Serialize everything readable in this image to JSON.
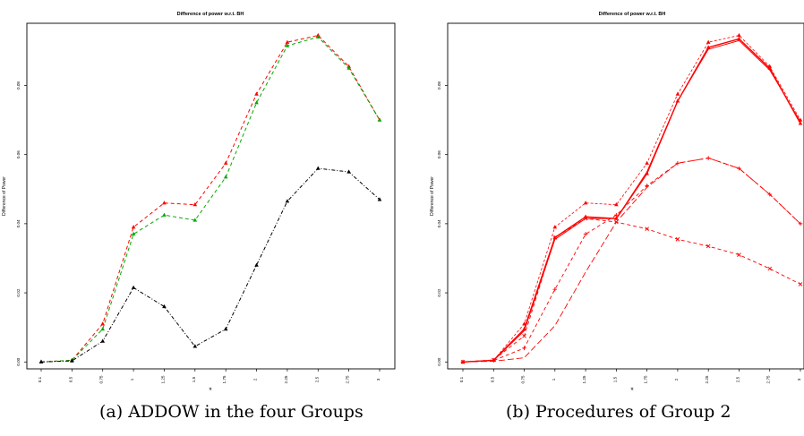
{
  "chart_data": [
    {
      "type": "line",
      "title": "Difference of power w.r.t. BH",
      "xlabel": "π",
      "ylabel": "Difference of Power",
      "caption": "(a) ADDOW in the four Groups",
      "x_tick_labels": [
        "0.1",
        "0.5",
        "0.75",
        "1",
        "1.25",
        "1.5",
        "1.75",
        "2",
        "2.25",
        "2.5",
        "2.75",
        "3"
      ],
      "y_ticks": [
        "0.00",
        "0.02",
        "0.04",
        "0.06",
        "0.08"
      ],
      "ylim": [
        -0.002,
        0.098
      ],
      "series": [
        {
          "color": "#ff0000",
          "marker": "triangle",
          "dash": "4,3",
          "values": [
            0.0,
            0.0005,
            0.011,
            0.039,
            0.046,
            0.0455,
            0.0575,
            0.0775,
            0.0925,
            0.0945,
            0.0855,
            0.07
          ]
        },
        {
          "color": "#00aa00",
          "marker": "triangle",
          "dash": "4,3",
          "values": [
            0.0,
            0.0005,
            0.0095,
            0.037,
            0.0425,
            0.041,
            0.0535,
            0.075,
            0.0915,
            0.094,
            0.085,
            0.07
          ]
        },
        {
          "color": "#000000",
          "marker": "triangle",
          "dash": "4,2,1,2",
          "values": [
            0.0,
            0.0003,
            0.006,
            0.0215,
            0.016,
            0.0045,
            0.0095,
            0.028,
            0.0465,
            0.056,
            0.055,
            0.047
          ]
        }
      ]
    },
    {
      "type": "line",
      "title": "Difference of power w.r.t. BH",
      "xlabel": "π",
      "ylabel": "Difference of Power",
      "caption": "(b) Procedures of Group 2",
      "x_tick_labels": [
        "0.1",
        "0.5",
        "0.75",
        "1",
        "1.25",
        "1.5",
        "1.75",
        "2",
        "2.25",
        "2.5",
        "2.75",
        "3"
      ],
      "y_ticks": [
        "0.00",
        "0.02",
        "0.04",
        "0.06",
        "0.08"
      ],
      "ylim": [
        -0.002,
        0.098
      ],
      "series": [
        {
          "color": "#ff0000",
          "marker": "triangle",
          "dash": "3,2",
          "width": 0.8,
          "values": [
            0.0,
            0.0005,
            0.011,
            0.039,
            0.046,
            0.0455,
            0.0575,
            0.0775,
            0.0925,
            0.0945,
            0.0855,
            0.07
          ]
        },
        {
          "color": "#ff0000",
          "marker": "triangle",
          "dash": "",
          "width": 1.4,
          "values": [
            0.0,
            0.0005,
            0.0095,
            0.036,
            0.042,
            0.0415,
            0.0545,
            0.0755,
            0.091,
            0.0935,
            0.085,
            0.069
          ]
        },
        {
          "color": "#ff0000",
          "marker": "none",
          "dash": "",
          "width": 1.0,
          "values": [
            0.0,
            0.0004,
            0.009,
            0.0355,
            0.0415,
            0.0415,
            0.055,
            0.0755,
            0.0905,
            0.093,
            0.0845,
            0.0695
          ]
        },
        {
          "color": "#ff0000",
          "marker": "plus",
          "dash": "4,3",
          "width": 0.9,
          "values": [
            0.0,
            0.0004,
            0.004,
            0.021,
            0.037,
            0.0425,
            0.051,
            0.0575,
            0.059,
            0.056,
            0.0485,
            0.04
          ]
        },
        {
          "color": "#ff0000",
          "marker": "none",
          "dash": "7,3",
          "width": 0.9,
          "values": [
            0.0,
            0.0002,
            0.0012,
            0.0105,
            0.026,
            0.0405,
            0.0505,
            0.0575,
            0.059,
            0.056,
            0.0485,
            0.04
          ]
        },
        {
          "color": "#ff0000",
          "marker": "cross",
          "dash": "4,3",
          "width": 0.9,
          "values": [
            0.0,
            0.0006,
            0.0075,
            0.036,
            0.0415,
            0.0405,
            0.0385,
            0.0355,
            0.0335,
            0.031,
            0.027,
            0.0225
          ]
        }
      ]
    }
  ]
}
